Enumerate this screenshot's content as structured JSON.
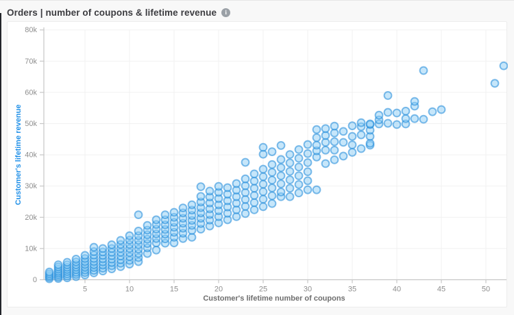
{
  "header": {
    "title": "Orders | number of coupons & lifetime revenue",
    "info_icon_glyph": "i"
  },
  "chart_data": {
    "type": "scatter",
    "title": "Orders | number of coupons & lifetime revenue",
    "xlabel": "Customer's lifetime number of coupons",
    "ylabel": "Customer's lifetime revenue",
    "xlim": [
      0,
      53
    ],
    "ylim": [
      0,
      80000
    ],
    "x_ticks": [
      5,
      10,
      15,
      20,
      25,
      30,
      35,
      40,
      45,
      50
    ],
    "x_tick_labels": [
      "5",
      "10",
      "15",
      "20",
      "25",
      "30",
      "35",
      "40",
      "45",
      "50"
    ],
    "y_tick_values": [
      0,
      10000,
      20000,
      30000,
      40000,
      50000,
      60000,
      70000,
      80000
    ],
    "y_tick_labels": [
      "0",
      "10k",
      "20k",
      "30k",
      "40k",
      "50k",
      "60k",
      "70k",
      "80k"
    ],
    "grid": true,
    "legend": false,
    "points": [
      [
        1,
        300
      ],
      [
        1,
        800
      ],
      [
        1,
        1300
      ],
      [
        1,
        1900
      ],
      [
        1,
        2500
      ],
      [
        2,
        400
      ],
      [
        2,
        900
      ],
      [
        2,
        1500
      ],
      [
        2,
        2100
      ],
      [
        2,
        2700
      ],
      [
        2,
        3400
      ],
      [
        2,
        4100
      ],
      [
        2,
        4800
      ],
      [
        3,
        600
      ],
      [
        3,
        1200
      ],
      [
        3,
        1900
      ],
      [
        3,
        2600
      ],
      [
        3,
        3300
      ],
      [
        3,
        4000
      ],
      [
        3,
        4800
      ],
      [
        3,
        5600
      ],
      [
        4,
        1000
      ],
      [
        4,
        1700
      ],
      [
        4,
        2400
      ],
      [
        4,
        3200
      ],
      [
        4,
        4000
      ],
      [
        4,
        4800
      ],
      [
        4,
        5700
      ],
      [
        4,
        6600
      ],
      [
        5,
        1500
      ],
      [
        5,
        2300
      ],
      [
        5,
        3100
      ],
      [
        5,
        4000
      ],
      [
        5,
        4900
      ],
      [
        5,
        5800
      ],
      [
        5,
        6800
      ],
      [
        5,
        7800
      ],
      [
        6,
        2200
      ],
      [
        6,
        3000
      ],
      [
        6,
        3900
      ],
      [
        6,
        4800
      ],
      [
        6,
        5800
      ],
      [
        6,
        6800
      ],
      [
        6,
        7900
      ],
      [
        6,
        9000
      ],
      [
        6,
        10400
      ],
      [
        7,
        2800
      ],
      [
        7,
        3700
      ],
      [
        7,
        4700
      ],
      [
        7,
        5700
      ],
      [
        7,
        6700
      ],
      [
        7,
        7800
      ],
      [
        7,
        8900
      ],
      [
        7,
        10000
      ],
      [
        8,
        3500
      ],
      [
        8,
        4500
      ],
      [
        8,
        5500
      ],
      [
        8,
        6600
      ],
      [
        8,
        7700
      ],
      [
        8,
        8800
      ],
      [
        8,
        10000
      ],
      [
        8,
        11200
      ],
      [
        9,
        4200
      ],
      [
        9,
        5300
      ],
      [
        9,
        6400
      ],
      [
        9,
        7600
      ],
      [
        9,
        8800
      ],
      [
        9,
        10000
      ],
      [
        9,
        11300
      ],
      [
        9,
        12600
      ],
      [
        10,
        5000
      ],
      [
        10,
        6200
      ],
      [
        10,
        7400
      ],
      [
        10,
        8700
      ],
      [
        10,
        10000
      ],
      [
        10,
        11300
      ],
      [
        10,
        12700
      ],
      [
        10,
        14100
      ],
      [
        11,
        5800
      ],
      [
        11,
        7100
      ],
      [
        11,
        8400
      ],
      [
        11,
        9800
      ],
      [
        11,
        11200
      ],
      [
        11,
        12600
      ],
      [
        11,
        14100
      ],
      [
        11,
        15600
      ],
      [
        11,
        20800
      ],
      [
        12,
        8400
      ],
      [
        12,
        10200
      ],
      [
        12,
        11600
      ],
      [
        12,
        13000
      ],
      [
        12,
        14400
      ],
      [
        12,
        15900
      ],
      [
        12,
        17400
      ],
      [
        13,
        9500
      ],
      [
        13,
        11800
      ],
      [
        13,
        13200
      ],
      [
        13,
        14700
      ],
      [
        13,
        16200
      ],
      [
        13,
        17700
      ],
      [
        13,
        19200
      ],
      [
        14,
        11700
      ],
      [
        14,
        13100
      ],
      [
        14,
        14600
      ],
      [
        14,
        16100
      ],
      [
        14,
        17600
      ],
      [
        14,
        19200
      ],
      [
        14,
        20800
      ],
      [
        15,
        11800
      ],
      [
        15,
        13600
      ],
      [
        15,
        15200
      ],
      [
        15,
        16800
      ],
      [
        15,
        18400
      ],
      [
        15,
        20000
      ],
      [
        15,
        21600
      ],
      [
        16,
        13200
      ],
      [
        16,
        14900
      ],
      [
        16,
        16500
      ],
      [
        16,
        18100
      ],
      [
        16,
        19700
      ],
      [
        16,
        21400
      ],
      [
        16,
        23000
      ],
      [
        17,
        13600
      ],
      [
        17,
        15800
      ],
      [
        17,
        17400
      ],
      [
        17,
        19000
      ],
      [
        17,
        20600
      ],
      [
        17,
        22300
      ],
      [
        17,
        24000
      ],
      [
        18,
        16200
      ],
      [
        18,
        18000
      ],
      [
        18,
        19700
      ],
      [
        18,
        21400
      ],
      [
        18,
        23100
      ],
      [
        18,
        24900
      ],
      [
        18,
        26700
      ],
      [
        18,
        29800
      ],
      [
        19,
        17200
      ],
      [
        19,
        19100
      ],
      [
        19,
        20900
      ],
      [
        19,
        22700
      ],
      [
        19,
        24600
      ],
      [
        19,
        26500
      ],
      [
        19,
        28400
      ],
      [
        20,
        18200
      ],
      [
        20,
        20200
      ],
      [
        20,
        22100
      ],
      [
        20,
        24000
      ],
      [
        20,
        26000
      ],
      [
        20,
        28000
      ],
      [
        20,
        29900
      ],
      [
        21,
        19200
      ],
      [
        21,
        21300
      ],
      [
        21,
        23300
      ],
      [
        21,
        25300
      ],
      [
        21,
        27400
      ],
      [
        21,
        29500
      ],
      [
        22,
        20200
      ],
      [
        22,
        22400
      ],
      [
        22,
        24500
      ],
      [
        22,
        26600
      ],
      [
        22,
        28700
      ],
      [
        22,
        30800
      ],
      [
        23,
        21200
      ],
      [
        23,
        23500
      ],
      [
        23,
        25700
      ],
      [
        23,
        27900
      ],
      [
        23,
        30100
      ],
      [
        23,
        32300
      ],
      [
        23,
        37600
      ],
      [
        24,
        22400
      ],
      [
        24,
        24700
      ],
      [
        24,
        27000
      ],
      [
        24,
        29300
      ],
      [
        24,
        31600
      ],
      [
        24,
        33900
      ],
      [
        25,
        23400
      ],
      [
        25,
        25800
      ],
      [
        25,
        28200
      ],
      [
        25,
        30600
      ],
      [
        25,
        33000
      ],
      [
        25,
        35400
      ],
      [
        25,
        40200
      ],
      [
        25,
        42400
      ],
      [
        26,
        24400
      ],
      [
        26,
        26900
      ],
      [
        26,
        29400
      ],
      [
        26,
        31900
      ],
      [
        26,
        34400
      ],
      [
        26,
        36900
      ],
      [
        26,
        41000
      ],
      [
        27,
        26600
      ],
      [
        27,
        28100
      ],
      [
        27,
        30700
      ],
      [
        27,
        33300
      ],
      [
        27,
        35900
      ],
      [
        27,
        38500
      ],
      [
        27,
        43000
      ],
      [
        28,
        26600
      ],
      [
        28,
        29300
      ],
      [
        28,
        32000
      ],
      [
        28,
        34700
      ],
      [
        28,
        37400
      ],
      [
        28,
        40100
      ],
      [
        29,
        27800
      ],
      [
        29,
        30500
      ],
      [
        29,
        33300
      ],
      [
        29,
        36100
      ],
      [
        29,
        38900
      ],
      [
        29,
        41700
      ],
      [
        30,
        28800
      ],
      [
        30,
        31700
      ],
      [
        30,
        34600
      ],
      [
        30,
        37500
      ],
      [
        30,
        40400
      ],
      [
        30,
        43300
      ],
      [
        31,
        28800
      ],
      [
        31,
        39300
      ],
      [
        31,
        41300
      ],
      [
        31,
        43100
      ],
      [
        31,
        45500
      ],
      [
        31,
        48100
      ],
      [
        32,
        37200
      ],
      [
        32,
        41500
      ],
      [
        32,
        44000
      ],
      [
        32,
        46200
      ],
      [
        32,
        48400
      ],
      [
        33,
        38400
      ],
      [
        33,
        41500
      ],
      [
        33,
        44200
      ],
      [
        33,
        47000
      ],
      [
        33,
        49200
      ],
      [
        34,
        39600
      ],
      [
        34,
        44000
      ],
      [
        34,
        47500
      ],
      [
        35,
        40800
      ],
      [
        35,
        43200
      ],
      [
        35,
        45900
      ],
      [
        35,
        49300
      ],
      [
        36,
        42000
      ],
      [
        36,
        46400
      ],
      [
        36,
        49000
      ],
      [
        36,
        50300
      ],
      [
        37,
        43100
      ],
      [
        37,
        43700
      ],
      [
        37,
        45900
      ],
      [
        37,
        47900
      ],
      [
        37,
        49700
      ],
      [
        37,
        49900
      ],
      [
        38,
        49900
      ],
      [
        38,
        51200
      ],
      [
        38,
        52700
      ],
      [
        39,
        50100
      ],
      [
        39,
        53600
      ],
      [
        39,
        59000
      ],
      [
        40,
        49700
      ],
      [
        40,
        53400
      ],
      [
        41,
        49900
      ],
      [
        41,
        51600
      ],
      [
        41,
        54000
      ],
      [
        42,
        51600
      ],
      [
        42,
        55600
      ],
      [
        42,
        57100
      ],
      [
        43,
        51400
      ],
      [
        43,
        67000
      ],
      [
        44,
        53800
      ],
      [
        45,
        54500
      ],
      [
        51,
        62900
      ],
      [
        52,
        68500
      ]
    ]
  },
  "style": {
    "page_bg": "#f8f8f8",
    "card_bg": "#ffffff",
    "card_border": "#ececec",
    "title_color": "#3c3c40",
    "info_icon_bg": "#9aa0a6",
    "axis_line": "#c6c6c6",
    "tick_label": "#8e8e8e",
    "grid_line": "#f1f1f1",
    "x_title_color": "#6e6e6e",
    "y_title_color": "#2492e8",
    "point_fill": "#8ecdf5",
    "point_stroke": "#1e88d8"
  }
}
